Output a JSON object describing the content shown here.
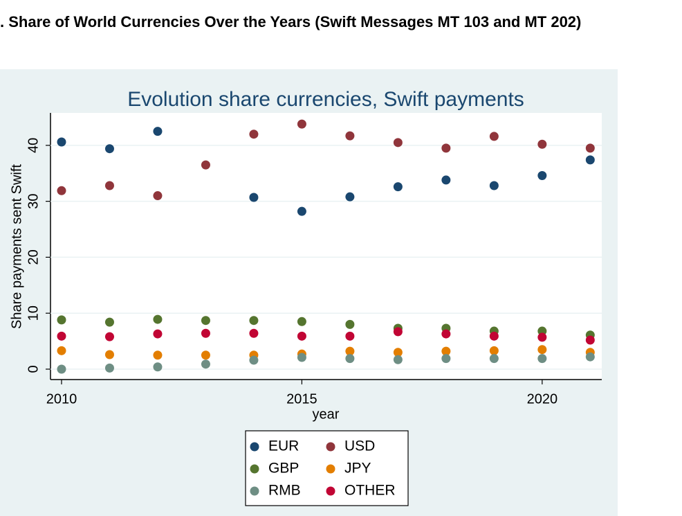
{
  "heading": ". Share of World Currencies Over the Years (Swift Messages MT 103 and MT 202)",
  "chart_data": {
    "type": "scatter",
    "title": "Evolution share currencies, Swift payments",
    "x_label": "year",
    "y_label": "Share payments sent Swift",
    "x": [
      2010,
      2011,
      2012,
      2013,
      2014,
      2015,
      2016,
      2017,
      2018,
      2019,
      2020,
      2021
    ],
    "series": [
      {
        "name": "EUR",
        "color": "#1a476f",
        "values": [
          40.6,
          39.4,
          42.5,
          null,
          30.7,
          28.2,
          30.8,
          32.6,
          33.8,
          32.8,
          34.6,
          37.4
        ]
      },
      {
        "name": "USD",
        "color": "#90353b",
        "values": [
          31.9,
          32.8,
          31.0,
          36.5,
          42.0,
          43.8,
          41.7,
          40.5,
          39.5,
          41.6,
          40.2,
          39.5
        ]
      },
      {
        "name": "GBP",
        "color": "#55752f",
        "values": [
          8.8,
          8.4,
          8.9,
          8.7,
          8.7,
          8.5,
          8.0,
          7.3,
          7.3,
          6.8,
          6.8,
          6.1
        ]
      },
      {
        "name": "JPY",
        "color": "#e37e00",
        "values": [
          3.3,
          2.6,
          2.5,
          2.5,
          2.5,
          2.7,
          3.2,
          3.0,
          3.2,
          3.3,
          3.5,
          3.0
        ]
      },
      {
        "name": "RMB",
        "color": "#6e8e84",
        "values": [
          0,
          0.2,
          0.4,
          0.9,
          1.6,
          2.1,
          1.9,
          1.7,
          1.9,
          1.9,
          1.9,
          2.2
        ]
      },
      {
        "name": "OTHER",
        "color": "#c10534",
        "values": [
          5.9,
          5.8,
          6.3,
          6.4,
          6.4,
          5.9,
          5.9,
          6.7,
          6.3,
          5.9,
          5.7,
          5.2
        ]
      }
    ],
    "xlim": [
      2009.77,
      2021.24
    ],
    "xticks": [
      2010,
      2015,
      2020
    ],
    "ylim": [
      -1.86,
      45.8
    ],
    "yticks": [
      0,
      10,
      20,
      30,
      40
    ],
    "grid": true
  }
}
